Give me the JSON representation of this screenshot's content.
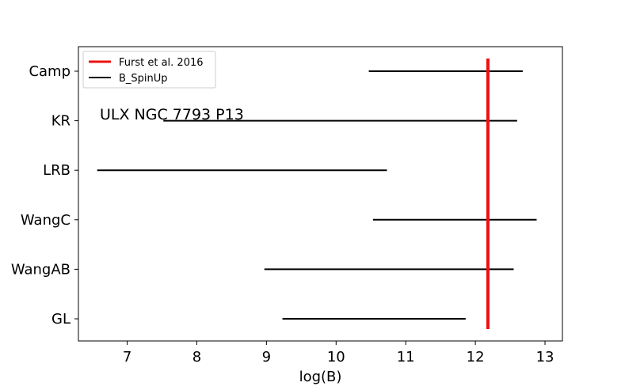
{
  "chart_data": {
    "type": "interval",
    "title": "",
    "xlabel": "log(B)",
    "ylabel": "",
    "xlim": [
      6.3,
      13.25
    ],
    "xticks": [
      7,
      8,
      9,
      10,
      11,
      12,
      13
    ],
    "categories": [
      "Camp",
      "KR",
      "LRB",
      "WangC",
      "WangAB",
      "GL"
    ],
    "series": [
      {
        "name": "B_SpinUp",
        "color": "#000000",
        "intervals": [
          {
            "category": "Camp",
            "low": 10.47,
            "high": 12.68
          },
          {
            "category": "KR",
            "low": 7.52,
            "high": 12.6
          },
          {
            "category": "LRB",
            "low": 6.57,
            "high": 10.73
          },
          {
            "category": "WangC",
            "low": 10.53,
            "high": 12.88
          },
          {
            "category": "WangAB",
            "low": 8.97,
            "high": 12.55
          },
          {
            "category": "GL",
            "low": 9.23,
            "high": 11.86
          }
        ]
      }
    ],
    "reference_line": {
      "name": "Furst et al. 2016",
      "x": 12.18,
      "color": "#ee1111"
    },
    "annotation": "ULX NGC 7793 P13",
    "legend": {
      "position": "top-left",
      "entries": [
        "Furst et al. 2016",
        "B_SpinUp"
      ]
    },
    "grid": false
  }
}
